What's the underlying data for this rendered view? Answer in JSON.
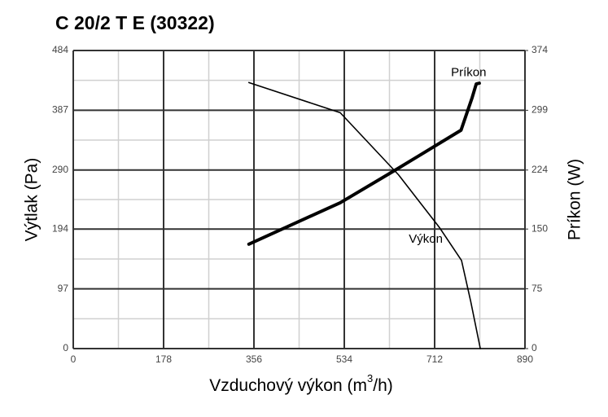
{
  "chart_data": {
    "type": "line",
    "title": "C 20/2 T E (30322)",
    "x_label": [
      "Vzduchový výkon (m",
      "3",
      "/h)"
    ],
    "y_label": "Výtlak (Pa)",
    "y2_label": "Príkon (W)",
    "xlim": [
      0,
      890
    ],
    "xticks": [
      0,
      178,
      356,
      534,
      712,
      890
    ],
    "ylim": [
      0,
      484
    ],
    "yticks": [
      0,
      97,
      194,
      290,
      387,
      484
    ],
    "y2lim": [
      0,
      374
    ],
    "y2ticks": [
      0,
      75,
      150,
      224,
      299,
      374
    ],
    "grid": true,
    "minor_grid": true,
    "series": [
      {
        "name": "Výkon",
        "color": "#000000",
        "width": 1.6,
        "x": [
          346,
          526,
          641,
          722,
          765,
          783,
          802
        ],
        "values": [
          432,
          383,
          282,
          196,
          143,
          77,
          0
        ]
      },
      {
        "name": "Príkon",
        "color": "#000000",
        "width": 4,
        "axis": "y2",
        "x": [
          346,
          526,
          632,
          764,
          786,
          794,
          800
        ],
        "values": [
          131,
          183,
          223,
          274,
          315,
          332,
          333
        ]
      }
    ]
  }
}
